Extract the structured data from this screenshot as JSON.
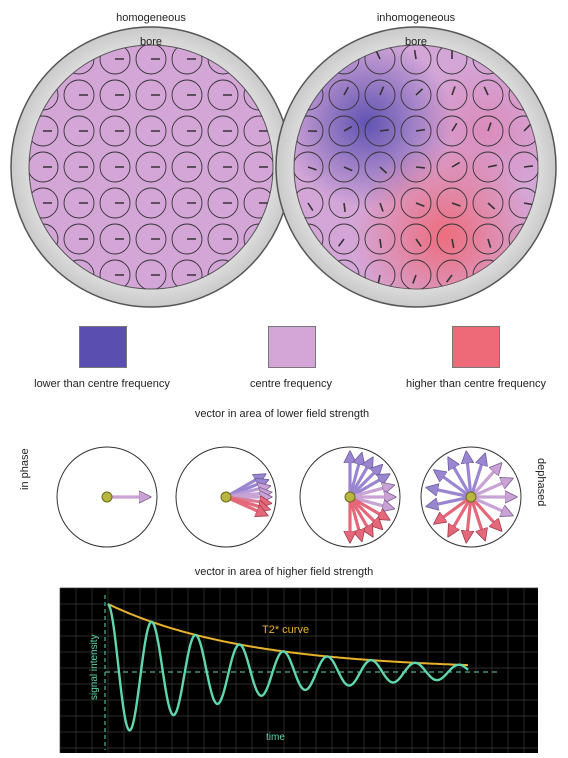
{
  "top": {
    "left_title": "homogeneous",
    "right_title": "inhomogeneous",
    "bore_label": "bore"
  },
  "legend": [
    {
      "label": "lower than centre frequency",
      "color": "#5a4fb0"
    },
    {
      "label": "centre frequency",
      "color": "#d4a6d8"
    },
    {
      "label": "higher than centre frequency",
      "color": "#ef6a78"
    }
  ],
  "phase": {
    "lower_label": "vector in area of lower field strength",
    "higher_label": "vector in area of higher field strength",
    "in_phase_label": "in phase",
    "dephased_label": "dephased"
  },
  "graph": {
    "curve_label": "T2* curve",
    "ylabel": "signal intensity",
    "xlabel": "time",
    "background": "#000000",
    "grid_color": "#3a3a3a",
    "envelope_color": "#e8b22a",
    "signal_color": "#5fd6b0"
  }
}
